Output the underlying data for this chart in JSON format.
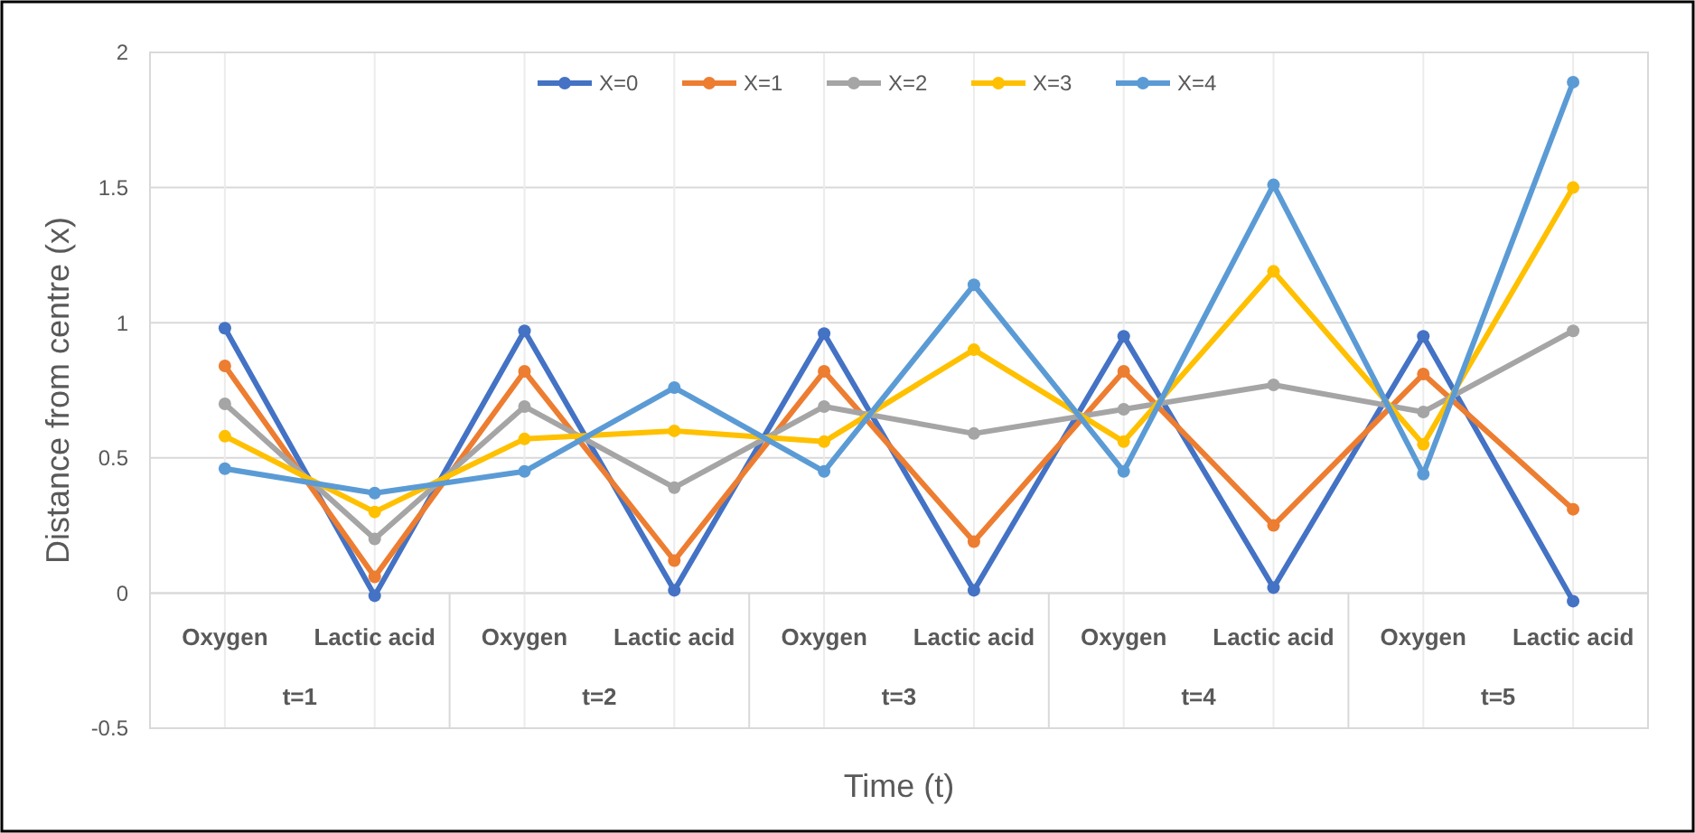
{
  "chart_data": {
    "type": "line",
    "xlabel": "Time (t)",
    "ylabel": "Distance from centre (x)",
    "categories": [
      "Oxygen",
      "Lactic acid",
      "Oxygen",
      "Lactic acid",
      "Oxygen",
      "Lactic acid",
      "Oxygen",
      "Lactic acid",
      "Oxygen",
      "Lactic acid"
    ],
    "annotations": [
      "t=1",
      "t=2",
      "t=3",
      "t=4",
      "t=5"
    ],
    "series": [
      {
        "name": "X=0",
        "color": "#4472c4",
        "values": [
          0.98,
          -0.01,
          0.97,
          0.01,
          0.96,
          0.01,
          0.95,
          0.02,
          0.95,
          -0.03
        ]
      },
      {
        "name": "X=1",
        "color": "#ed7d31",
        "values": [
          0.84,
          0.06,
          0.82,
          0.12,
          0.82,
          0.19,
          0.82,
          0.25,
          0.81,
          0.31
        ]
      },
      {
        "name": "X=2",
        "color": "#a5a5a5",
        "values": [
          0.7,
          0.2,
          0.69,
          0.39,
          0.69,
          0.59,
          0.68,
          0.77,
          0.67,
          0.97
        ]
      },
      {
        "name": "X=3",
        "color": "#ffc000",
        "values": [
          0.58,
          0.3,
          0.57,
          0.6,
          0.56,
          0.9,
          0.56,
          1.19,
          0.55,
          1.5
        ]
      },
      {
        "name": "X=4",
        "color": "#5b9bd5",
        "values": [
          0.46,
          0.37,
          0.45,
          0.76,
          0.45,
          1.14,
          0.45,
          1.51,
          0.44,
          1.89
        ]
      }
    ],
    "ylim": [
      -0.5,
      2
    ],
    "yticks": [
      -0.5,
      0,
      0.5,
      1,
      1.5,
      2
    ],
    "grid": true,
    "legend": "top",
    "marker": "circle",
    "line_style": "solid"
  }
}
